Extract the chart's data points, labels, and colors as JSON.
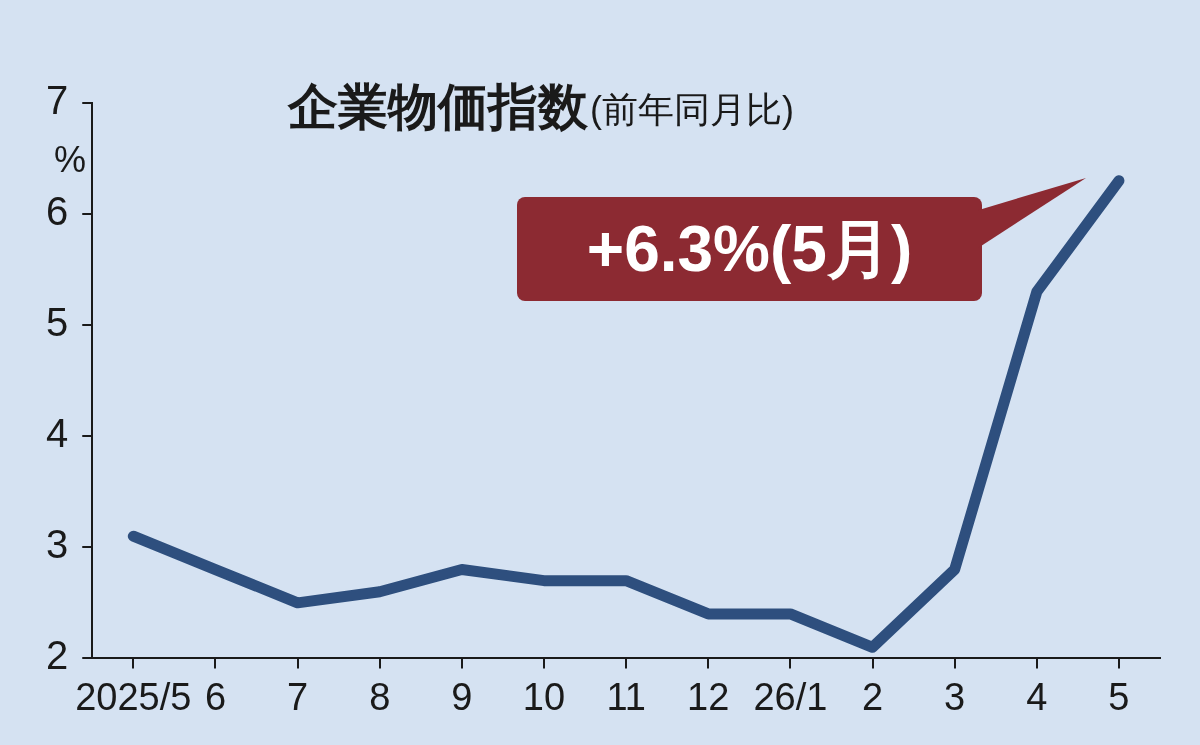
{
  "chart_data": {
    "type": "line",
    "title": "企業物価指数",
    "subtitle": "(前年同月比)",
    "ylabel": "%",
    "categories": [
      "2025/5",
      "6",
      "7",
      "8",
      "9",
      "10",
      "11",
      "12",
      "26/1",
      "2",
      "3",
      "4",
      "5"
    ],
    "series": [
      {
        "color": "#2e4f7e",
        "values": [
          3.1,
          2.8,
          2.5,
          2.6,
          2.8,
          2.7,
          2.7,
          2.4,
          2.4,
          2.1,
          2.8,
          5.3,
          6.3
        ]
      }
    ],
    "ylim": [
      2,
      7
    ],
    "yticks": [
      2,
      3,
      4,
      5,
      6,
      7
    ],
    "annotations": [
      "+6.3%(5月)"
    ],
    "grid": false,
    "legend": false,
    "marker": "none",
    "line_style": "solid"
  }
}
